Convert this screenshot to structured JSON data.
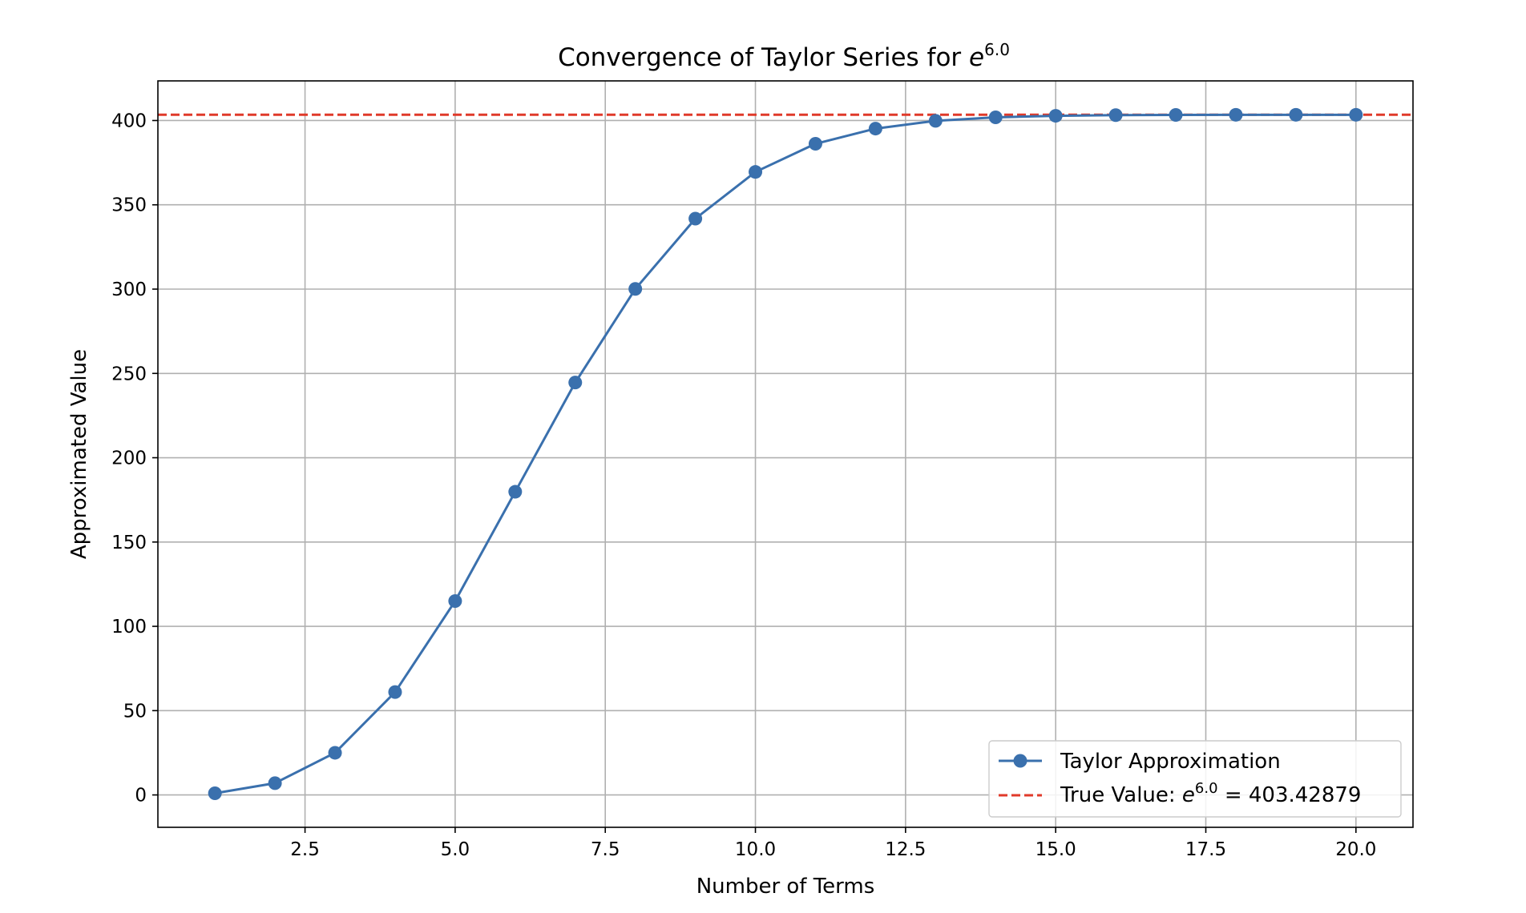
{
  "chart_data": {
    "type": "line",
    "title": "Convergence of Taylor Series for ",
    "title_math": {
      "base": "e",
      "exponent": "6.0"
    },
    "xlabel": "Number of Terms",
    "ylabel": "Approximated Value",
    "xlim": [
      0.05,
      20.95
    ],
    "ylim": [
      -19.2,
      423.5
    ],
    "xticks": [
      2.5,
      5.0,
      7.5,
      10.0,
      12.5,
      15.0,
      17.5,
      20.0
    ],
    "xtick_labels": [
      "2.5",
      "5.0",
      "7.5",
      "10.0",
      "12.5",
      "15.0",
      "17.5",
      "20.0"
    ],
    "yticks": [
      0,
      50,
      100,
      150,
      200,
      250,
      300,
      350,
      400
    ],
    "ytick_labels": [
      "0",
      "50",
      "100",
      "150",
      "200",
      "250",
      "300",
      "350",
      "400"
    ],
    "grid": true,
    "legend_position": "bottom-right",
    "series": [
      {
        "name": "Taylor Approximation",
        "style": "line-with-markers",
        "color": "#3a70ad",
        "x": [
          1,
          2,
          3,
          4,
          5,
          6,
          7,
          8,
          9,
          10,
          11,
          12,
          13,
          14,
          15,
          16,
          17,
          18,
          19,
          20
        ],
        "y": [
          1.0,
          7.0,
          25.0,
          61.0,
          115.0,
          179.8,
          244.6,
          300.1,
          341.8,
          369.5,
          386.2,
          395.2,
          399.8,
          401.9,
          402.8,
          403.2,
          403.3,
          403.4,
          403.4,
          403.4
        ]
      }
    ],
    "reference_line": {
      "name_prefix": "True Value: ",
      "name_math": {
        "base": "e",
        "exponent": "6.0"
      },
      "name_suffix": " = 403.42879",
      "value": 403.42879,
      "style": "dashed",
      "color": "#e03a2a"
    }
  }
}
